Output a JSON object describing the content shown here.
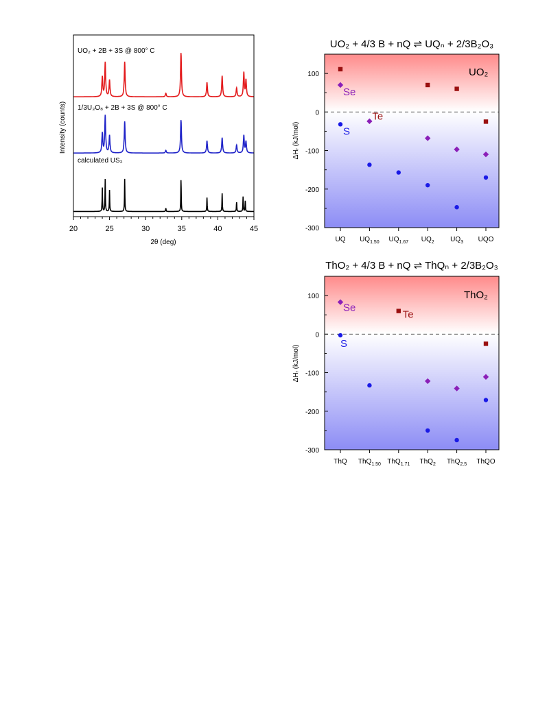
{
  "chart_data": [
    {
      "type": "line",
      "xlabel": "2θ (deg)",
      "ylabel": "Intensity (counts)",
      "xlim": [
        20,
        45
      ],
      "xticks": [
        "20",
        "25",
        "30",
        "35",
        "40",
        "45"
      ],
      "series": [
        {
          "name": "UO₂ + 2B + 3S @ 800° C",
          "color": "#e31a1c",
          "peaks": [
            [
              24.0,
              0.45
            ],
            [
              24.4,
              0.78
            ],
            [
              25.0,
              0.38
            ],
            [
              27.1,
              0.8
            ],
            [
              32.8,
              0.08
            ],
            [
              34.9,
              1.0
            ],
            [
              38.5,
              0.33
            ],
            [
              40.6,
              0.48
            ],
            [
              42.6,
              0.2
            ],
            [
              43.6,
              0.55
            ],
            [
              43.9,
              0.38
            ]
          ]
        },
        {
          "name": "1/3U₃O₈ + 2B + 3S  @ 800° C",
          "color": "#1f23c8",
          "peaks": [
            [
              24.0,
              0.45
            ],
            [
              24.4,
              0.85
            ],
            [
              25.0,
              0.4
            ],
            [
              27.1,
              0.72
            ],
            [
              32.8,
              0.06
            ],
            [
              34.9,
              0.75
            ],
            [
              38.5,
              0.28
            ],
            [
              40.6,
              0.35
            ],
            [
              42.6,
              0.18
            ],
            [
              43.6,
              0.4
            ],
            [
              43.9,
              0.26
            ]
          ]
        },
        {
          "name": "calculated US₂",
          "color": "#000000",
          "peaks": [
            [
              24.0,
              0.72
            ],
            [
              24.4,
              0.98
            ],
            [
              25.0,
              0.65
            ],
            [
              27.1,
              0.99
            ],
            [
              32.8,
              0.1
            ],
            [
              34.9,
              0.95
            ],
            [
              38.5,
              0.42
            ],
            [
              40.6,
              0.55
            ],
            [
              42.6,
              0.28
            ],
            [
              43.5,
              0.45
            ],
            [
              43.8,
              0.32
            ]
          ]
        }
      ]
    },
    {
      "type": "scatter",
      "title": "UO₂ + 4/3 B + nQ ⇌ UQₙ + 2/3B₂O₃",
      "inset": "UO₂",
      "ylabel": "ΔHᵣ (kJ/mol)",
      "ylim": [
        -300,
        150
      ],
      "yticks": [
        "100",
        "0",
        "-100",
        "-200",
        "-300"
      ],
      "categories": [
        "UQ",
        "UQ1.50",
        "UQ1.67",
        "UQ2",
        "UQ3",
        "UQO"
      ],
      "category_labels": [
        {
          "main": "UQ",
          "sub": ""
        },
        {
          "main": "UQ",
          "sub": "1.50"
        },
        {
          "main": "UQ",
          "sub": "1.67"
        },
        {
          "main": "UQ",
          "sub": "2"
        },
        {
          "main": "UQ",
          "sub": "3"
        },
        {
          "main": "UQO",
          "sub": ""
        }
      ],
      "series": [
        {
          "name": "S",
          "marker": "circle",
          "color": "#1a1ae6",
          "values": [
            -32,
            -137,
            -157,
            -190,
            -247,
            -170
          ]
        },
        {
          "name": "Se",
          "marker": "diamond",
          "color": "#8b1fb8",
          "values": [
            70,
            -24,
            null,
            -68,
            -97,
            -110
          ]
        },
        {
          "name": "Te",
          "marker": "square",
          "color": "#9a1010",
          "values": [
            111,
            null,
            null,
            70,
            60,
            -25
          ]
        }
      ]
    },
    {
      "type": "scatter",
      "title": "ThO₂ + 4/3 B + nQ ⇌ ThQₙ + 2/3B₂O₃",
      "inset": "ThO₂",
      "ylabel": "ΔHᵣ (kJ/mol)",
      "ylim": [
        -300,
        150
      ],
      "yticks": [
        "100",
        "0",
        "-100",
        "-200",
        "-300"
      ],
      "categories": [
        "ThQ",
        "ThQ1.50",
        "ThQ1.71",
        "ThQ2",
        "ThQ2.5",
        "ThQO"
      ],
      "category_labels": [
        {
          "main": "ThQ",
          "sub": ""
        },
        {
          "main": "ThQ",
          "sub": "1.50"
        },
        {
          "main": "ThQ",
          "sub": "1.71"
        },
        {
          "main": "ThQ",
          "sub": "2"
        },
        {
          "main": "ThQ",
          "sub": "2.5"
        },
        {
          "main": "ThQO",
          "sub": ""
        }
      ],
      "series": [
        {
          "name": "S",
          "marker": "circle",
          "color": "#1a1ae6",
          "values": [
            -3,
            -133,
            null,
            -250,
            -275,
            -171
          ]
        },
        {
          "name": "Se",
          "marker": "diamond",
          "color": "#8b1fb8",
          "values": [
            83,
            null,
            null,
            -122,
            -141,
            -111
          ]
        },
        {
          "name": "Te",
          "marker": "square",
          "color": "#9a1010",
          "values": [
            null,
            null,
            60,
            null,
            null,
            -25
          ]
        }
      ]
    }
  ]
}
